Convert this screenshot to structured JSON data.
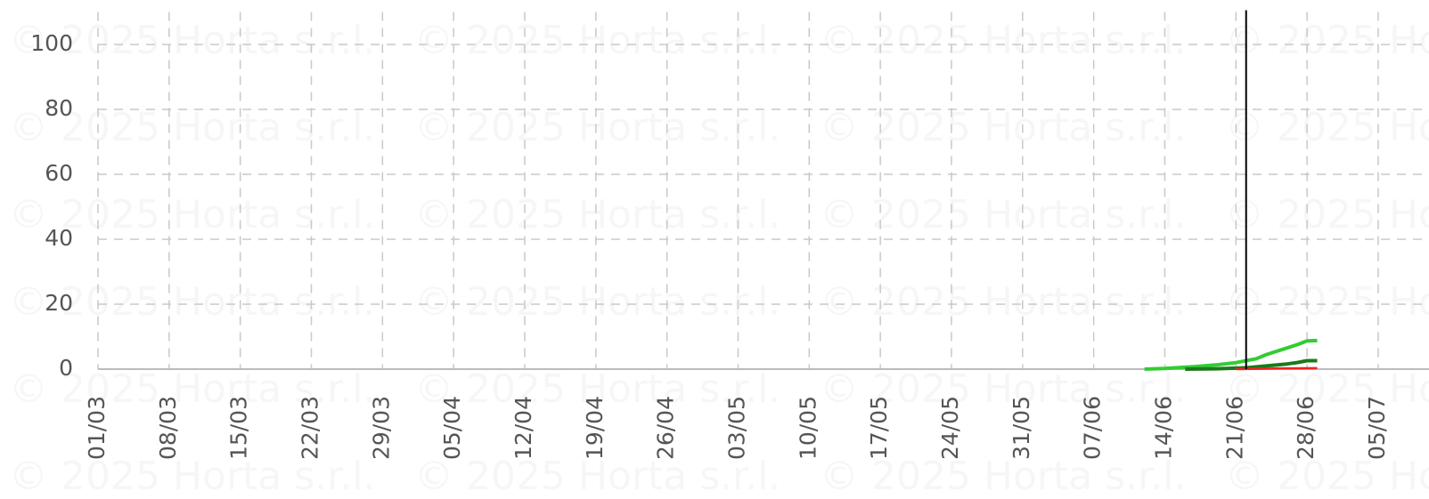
{
  "chart_data": {
    "type": "line",
    "watermark": "© 2025 Horta s.r.l.",
    "xlim": [
      0,
      131
    ],
    "ylim": [
      0,
      110
    ],
    "yticks": [
      0,
      20,
      40,
      60,
      80,
      100
    ],
    "xticks": [
      {
        "value": 0,
        "label": "01/03"
      },
      {
        "value": 7,
        "label": "08/03"
      },
      {
        "value": 14,
        "label": "15/03"
      },
      {
        "value": 21,
        "label": "22/03"
      },
      {
        "value": 28,
        "label": "29/03"
      },
      {
        "value": 35,
        "label": "05/04"
      },
      {
        "value": 42,
        "label": "12/04"
      },
      {
        "value": 49,
        "label": "19/04"
      },
      {
        "value": 56,
        "label": "26/04"
      },
      {
        "value": 63,
        "label": "03/05"
      },
      {
        "value": 70,
        "label": "10/05"
      },
      {
        "value": 77,
        "label": "17/05"
      },
      {
        "value": 84,
        "label": "24/05"
      },
      {
        "value": 91,
        "label": "31/05"
      },
      {
        "value": 98,
        "label": "07/06"
      },
      {
        "value": 105,
        "label": "14/06"
      },
      {
        "value": 112,
        "label": "21/06"
      },
      {
        "value": 119,
        "label": "28/06"
      },
      {
        "value": 126,
        "label": "05/07"
      }
    ],
    "grid": true,
    "vline_x": 113,
    "series": [
      {
        "color": "#33cc33",
        "width": 4,
        "x": [
          103,
          105,
          108,
          110,
          112,
          114,
          115,
          117,
          118,
          119,
          120
        ],
        "values": [
          0,
          0.2,
          0.8,
          1.3,
          2,
          3.2,
          4.5,
          6.5,
          7.5,
          8.7,
          8.8
        ]
      },
      {
        "color": "#1a7a1a",
        "width": 4,
        "x": [
          107,
          110,
          113,
          115,
          117,
          118,
          119,
          120
        ],
        "values": [
          0,
          0.1,
          0.4,
          1,
          1.6,
          2,
          2.6,
          2.6
        ]
      },
      {
        "color": "#ee2222",
        "width": 2.5,
        "x": [
          112,
          116,
          120
        ],
        "values": [
          0,
          0.2,
          0.3
        ]
      }
    ]
  }
}
